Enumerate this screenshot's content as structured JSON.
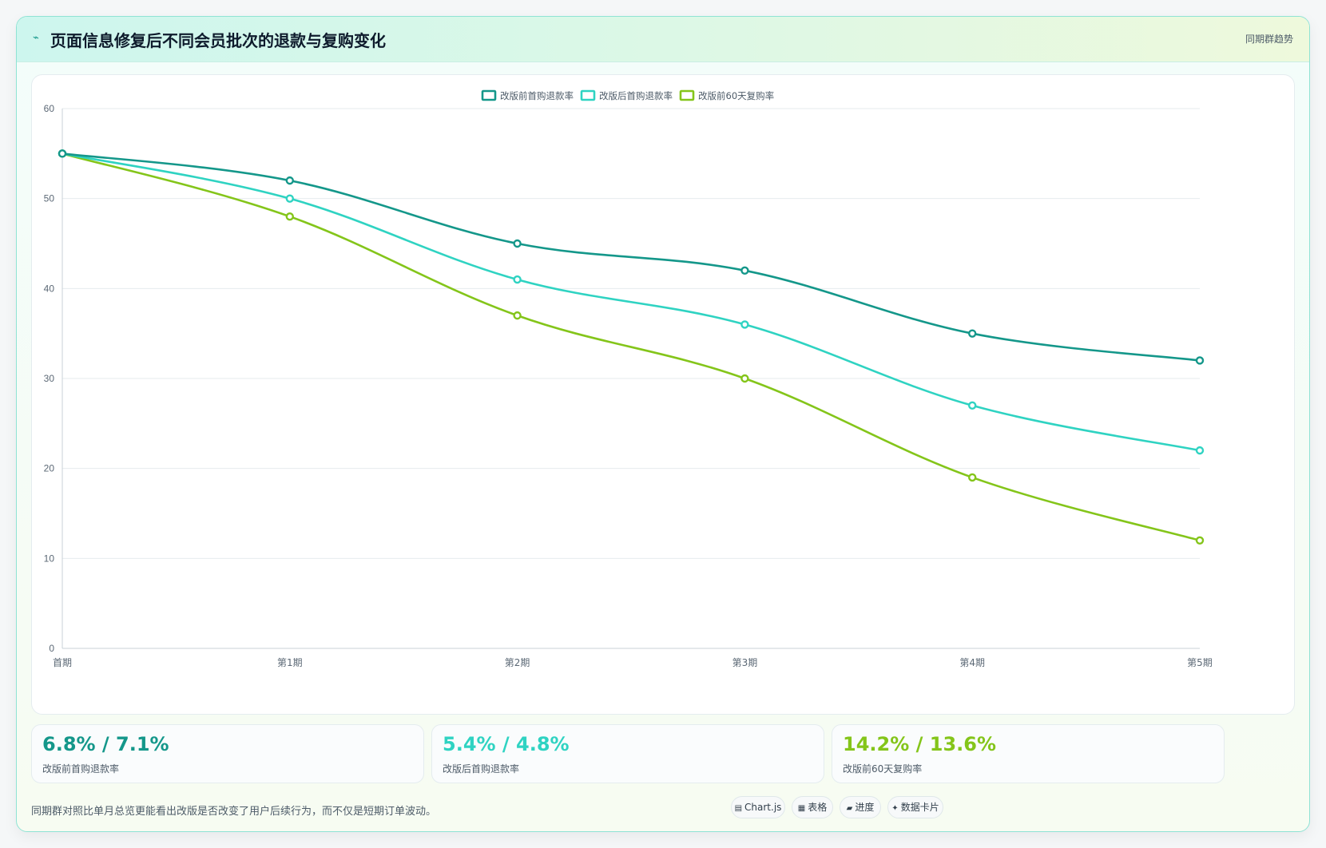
{
  "header": {
    "icon": "lightning-icon",
    "title": "页面信息修复后不同会员批次的退款与复购变化",
    "tag": "同期群趋势"
  },
  "colors": {
    "series1": "#14978a",
    "series2": "#2fd3c2",
    "series3": "#84c51a"
  },
  "chart_data": {
    "type": "line",
    "categories": [
      "首期",
      "第1期",
      "第2期",
      "第3期",
      "第4期",
      "第5期"
    ],
    "ylim": [
      0,
      60
    ],
    "yticks": [
      0,
      10,
      20,
      30,
      40,
      50,
      60
    ],
    "grid": true,
    "legend_position": "top-center",
    "series": [
      {
        "name": "改版前首购退款率",
        "values": [
          55,
          52,
          45,
          42,
          35,
          32
        ]
      },
      {
        "name": "改版后首购退款率",
        "values": [
          55,
          50,
          41,
          36,
          27,
          22
        ]
      },
      {
        "name": "改版前60天复购率",
        "values": [
          55,
          48,
          37,
          30,
          19,
          12
        ]
      }
    ]
  },
  "stats": [
    {
      "value": "6.8% / 7.1%",
      "label": "改版前首购退款率"
    },
    {
      "value": "5.4% / 4.8%",
      "label": "改版后首购退款率"
    },
    {
      "value": "14.2% / 13.6%",
      "label": "改版前60天复购率"
    }
  ],
  "footnote": "同期群对照比单月总览更能看出改版是否改变了用户后续行为，而不仅是短期订单波动。",
  "chips": [
    {
      "icon": "chart-icon",
      "label": "Chart.js"
    },
    {
      "icon": "table-icon",
      "label": "表格"
    },
    {
      "icon": "progress-icon",
      "label": "进度"
    },
    {
      "icon": "sparkle-icon",
      "label": "数据卡片"
    }
  ]
}
